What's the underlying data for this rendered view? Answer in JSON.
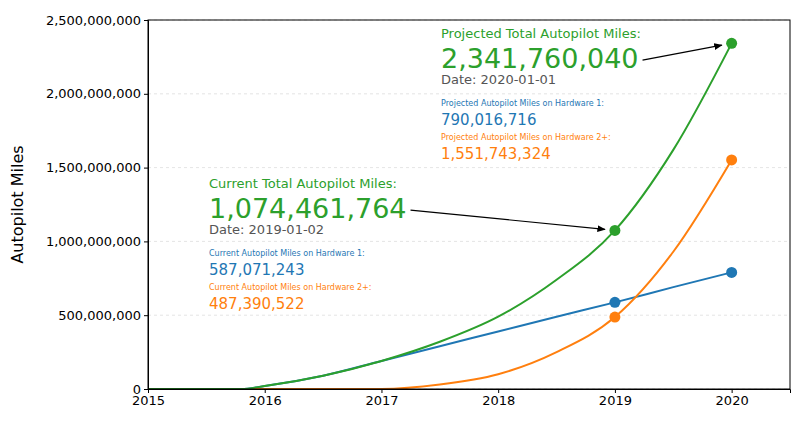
{
  "chart_data": {
    "type": "line",
    "y_label": "Autopilot Miles",
    "x": [
      2015,
      2015.8,
      2016,
      2016.5,
      2017,
      2017.5,
      2018,
      2018.5,
      2019,
      2019.5,
      2020
    ],
    "series": [
      {
        "color": "#1f77b4",
        "values": [
          0,
          0,
          20000000,
          90000000,
          190000000,
          290000000,
          390000000,
          490000000,
          587071243,
          690000000,
          790016716
        ]
      },
      {
        "color": "#ff7f0e",
        "values": [
          0,
          0,
          0,
          0,
          0,
          30000000,
          100000000,
          250000000,
          487390522,
          930000000,
          1551743324
        ]
      },
      {
        "color": "#2ca02c",
        "values": [
          0,
          0,
          20000000,
          90000000,
          190000000,
          320000000,
          490000000,
          740000000,
          1074461764,
          1620000000,
          2341760040
        ]
      }
    ],
    "xlim": [
      2015,
      2020.5
    ],
    "xticks": [
      2015,
      2016,
      2017,
      2018,
      2019,
      2020
    ],
    "ylim": [
      0,
      2500000000
    ],
    "yticks": [
      0,
      {
        "value": 500000000,
        "label": "500,000,000"
      },
      {
        "value": 1000000000,
        "label": "1,000,000,000"
      },
      {
        "value": 1500000000,
        "label": "1,500,000,000"
      },
      {
        "value": 2000000000,
        "label": "2,000,000,000"
      },
      {
        "value": 2500000000,
        "label": "2,500,000,000"
      }
    ],
    "grid": "y",
    "annotations": [
      {
        "x": 2020,
        "date": "Date: 2020-01-01",
        "items": [
          {
            "label": "Projected Total Autopilot Miles:",
            "value": 2341760040,
            "value_label": "2,341,760,040",
            "color": "#2ca02c"
          },
          {
            "label": "Projected Autopilot Miles on Hardware 1:",
            "value": 790016716,
            "value_label": "790,016,716",
            "color": "#1f77b4"
          },
          {
            "label": "Projected Autopilot Miles on Hardware 2+:",
            "value": 1551743324,
            "value_label": "1,551,743,324",
            "color": "#ff7f0e"
          }
        ]
      },
      {
        "x": 2019,
        "date": "Date: 2019-01-02",
        "items": [
          {
            "label": "Current Total Autopilot Miles:",
            "value": 1074461764,
            "value_label": "1,074,461,764",
            "color": "#2ca02c"
          },
          {
            "label": "Current Autopilot Miles on Hardware 1:",
            "value": 587071243,
            "value_label": "587,071,243",
            "color": "#1f77b4"
          },
          {
            "label": "Current Autopilot Miles on Hardware 2+:",
            "value": 487390522,
            "value_label": "487,390,522",
            "color": "#ff7f0e"
          }
        ]
      }
    ]
  }
}
